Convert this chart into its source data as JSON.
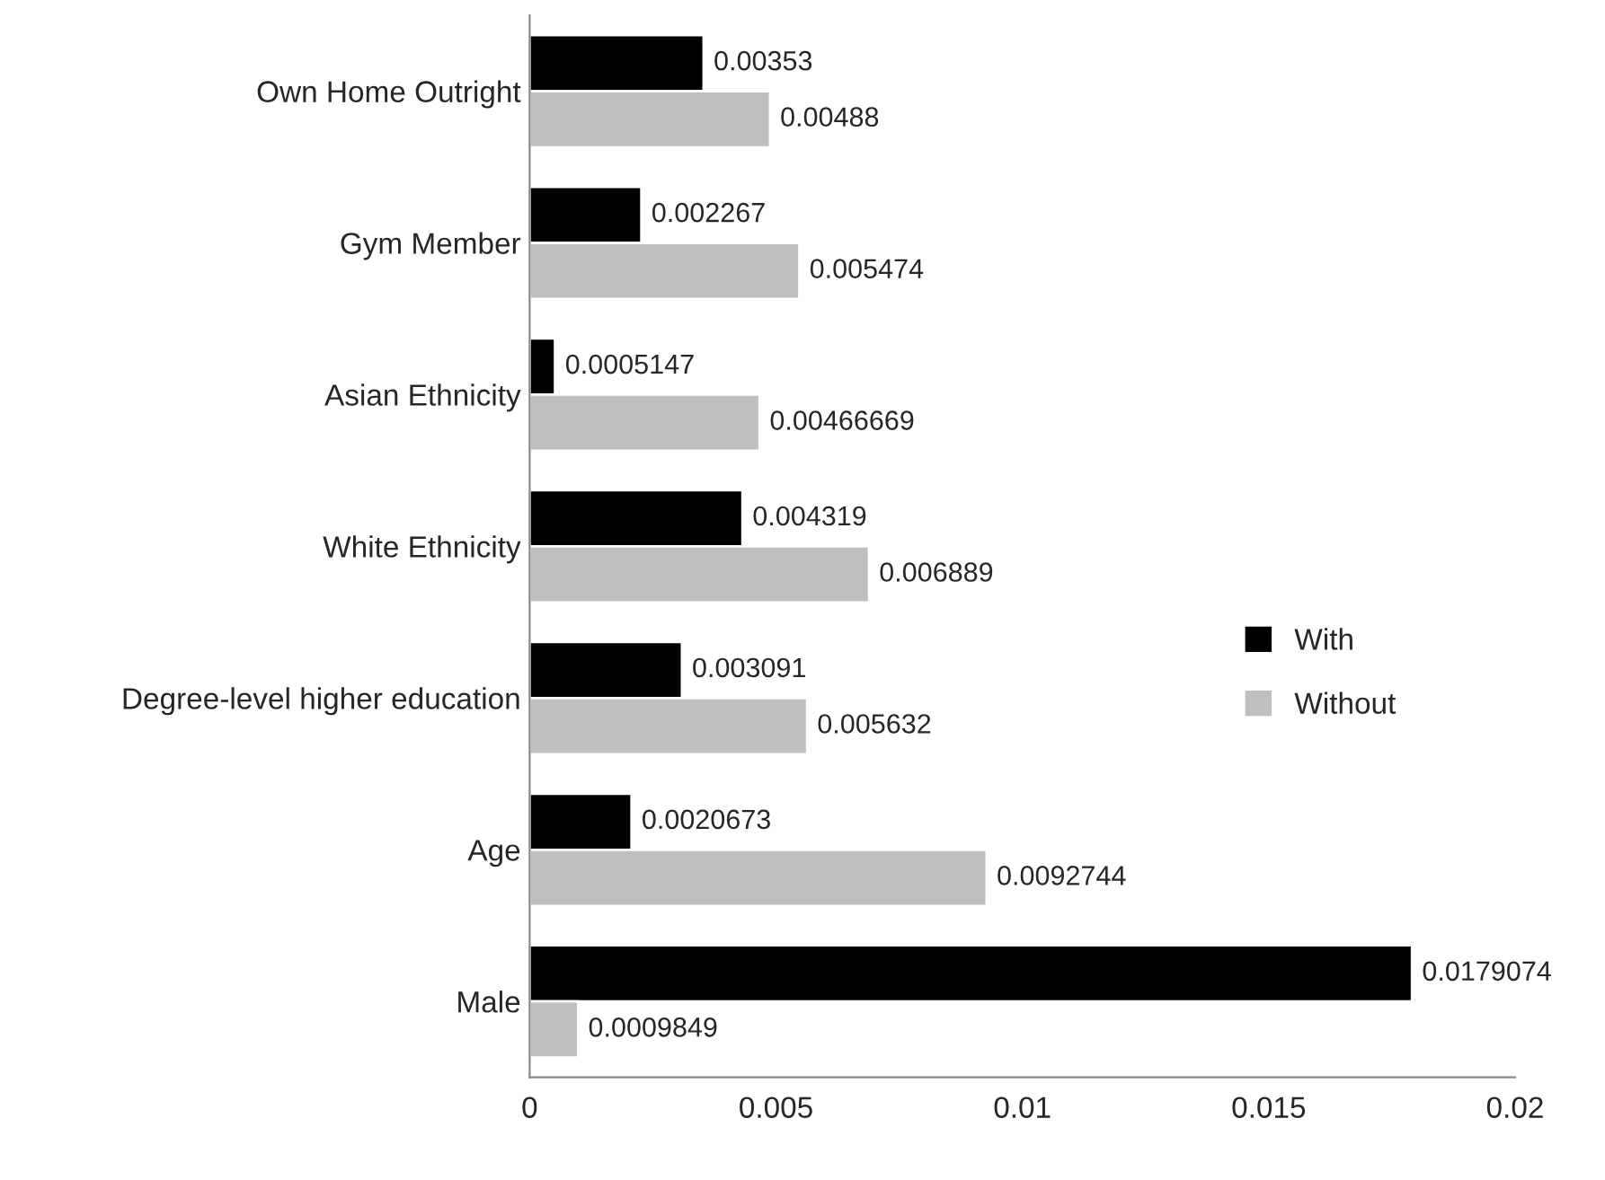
{
  "chart_data": {
    "type": "bar",
    "orientation": "horizontal",
    "categories": [
      "Own Home Outright",
      "Gym Member",
      "Asian Ethnicity",
      "White Ethnicity",
      "Degree-level higher education",
      "Age",
      "Male"
    ],
    "series": [
      {
        "name": "With",
        "color": "#000000",
        "values": [
          0.00353,
          0.002267,
          0.0005147,
          0.004319,
          0.003091,
          0.0020673,
          0.0179074
        ],
        "value_labels": [
          "0.00353",
          "0.002267",
          "0.0005147",
          "0.004319",
          "0.003091",
          "0.0020673",
          "0.0179074"
        ]
      },
      {
        "name": "Without",
        "color": "#bfbfbf",
        "values": [
          0.00488,
          0.005474,
          0.00466669,
          0.006889,
          0.005632,
          0.0092744,
          0.0009849
        ],
        "value_labels": [
          "0.00488",
          "0.005474",
          "0.00466669",
          "0.006889",
          "0.005632",
          "0.0092744",
          "0.0009849"
        ]
      }
    ],
    "xlim": [
      0,
      0.02
    ],
    "xticks": [
      0,
      0.005,
      0.01,
      0.015,
      0.02
    ],
    "grid": false,
    "legend": "right"
  }
}
